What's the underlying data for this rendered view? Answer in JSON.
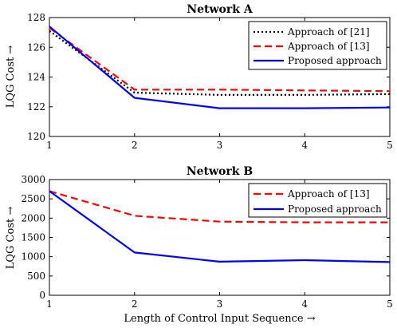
{
  "chart_data": [
    {
      "type": "line",
      "title": "Network A",
      "xlabel": "",
      "ylabel": "LQG Cost →",
      "x": [
        1,
        2,
        3,
        4,
        5
      ],
      "xlim": [
        1,
        5
      ],
      "ylim": [
        120,
        128
      ],
      "yticks": [
        120,
        122,
        124,
        126,
        128
      ],
      "xticks": [
        1,
        2,
        3,
        4,
        5
      ],
      "legend_position": "top-right",
      "grid": false,
      "series": [
        {
          "name": "Approach of [21]",
          "values": [
            127.1,
            122.95,
            122.8,
            122.8,
            122.85
          ],
          "color": "#000000",
          "style": "dotted"
        },
        {
          "name": "Approach of [13]",
          "values": [
            127.3,
            123.15,
            123.15,
            123.1,
            123.05
          ],
          "color": "#ff0000",
          "style": "dashed"
        },
        {
          "name": "Proposed approach",
          "values": [
            127.4,
            122.6,
            121.9,
            121.9,
            121.95
          ],
          "color": "#0000ff",
          "style": "solid"
        }
      ]
    },
    {
      "type": "line",
      "title": "Network B",
      "xlabel": "Length of Control Input Sequence →",
      "ylabel": "LQG Cost →",
      "x": [
        1,
        2,
        3,
        4,
        5
      ],
      "xlim": [
        1,
        5
      ],
      "ylim": [
        0,
        3000
      ],
      "yticks": [
        0,
        500,
        1000,
        1500,
        2000,
        2500,
        3000
      ],
      "xticks": [
        1,
        2,
        3,
        4,
        5
      ],
      "legend_position": "top-right",
      "grid": false,
      "series": [
        {
          "name": "Approach of [13]",
          "values": [
            2700,
            2060,
            1910,
            1890,
            1890
          ],
          "color": "#ff0000",
          "style": "dashed"
        },
        {
          "name": "Proposed approach",
          "values": [
            2700,
            1110,
            870,
            910,
            860
          ],
          "color": "#0000ff",
          "style": "solid"
        }
      ]
    }
  ]
}
